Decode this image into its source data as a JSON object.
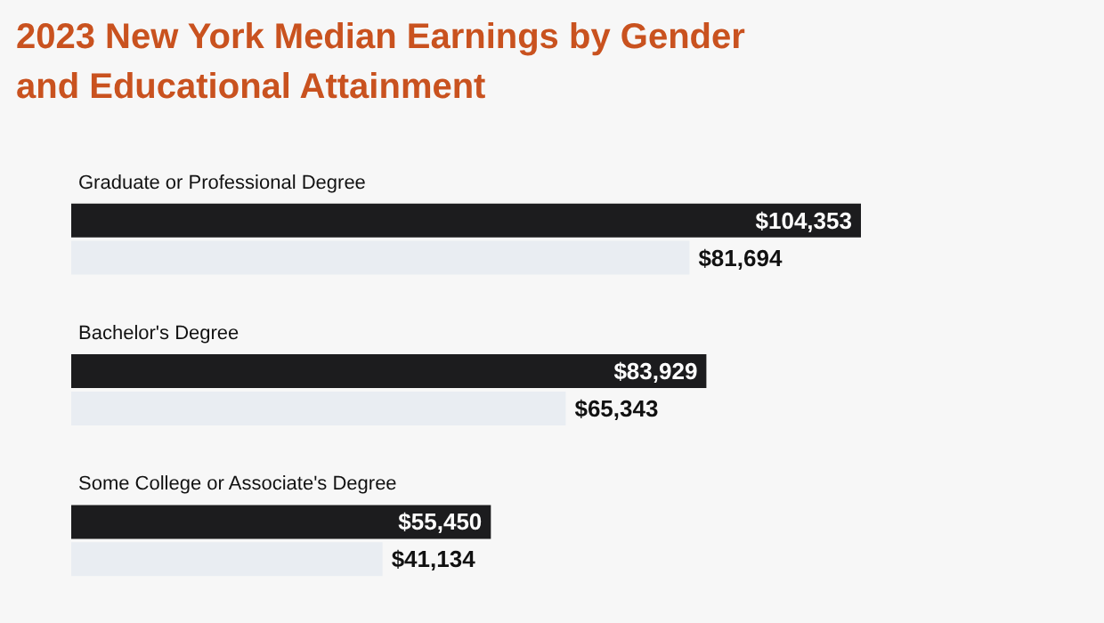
{
  "chart_data": {
    "type": "bar",
    "orientation": "horizontal",
    "title": "2023 New York Median Earnings by Gender\nand Educational Attainment",
    "categories": [
      "Graduate or Professional Degree",
      "Bachelor's Degree",
      "Some College or Associate's Degree"
    ],
    "series": [
      {
        "color": "#1c1c1e",
        "values": [
          104353,
          83929,
          55450
        ],
        "value_labels": [
          "$104,353",
          "$83,929",
          "$55,450"
        ]
      },
      {
        "color": "#e9edf2",
        "values": [
          81694,
          65343,
          41134
        ],
        "value_labels": [
          "$81,694",
          "$65,343",
          "$41,134"
        ]
      }
    ],
    "grid": false
  }
}
